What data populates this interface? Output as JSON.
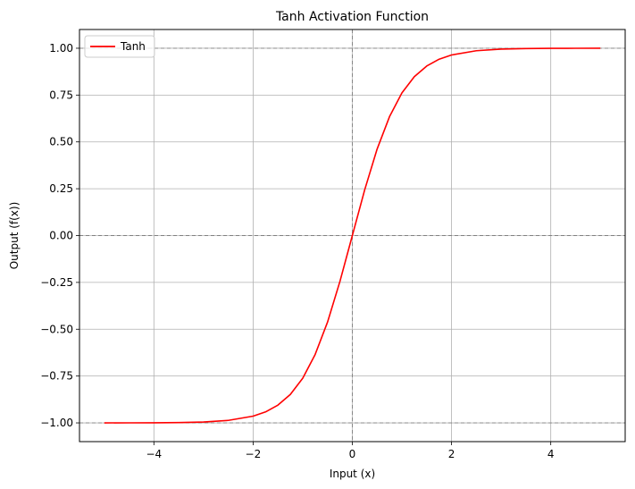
{
  "chart_data": {
    "type": "line",
    "title": "Tanh Activation Function",
    "xlabel": "Input (x)",
    "ylabel": "Output (f(x))",
    "xlim": [
      -5.5,
      5.5
    ],
    "ylim": [
      -1.1,
      1.1
    ],
    "xticks": [
      -4,
      -2,
      0,
      2,
      4
    ],
    "xtick_labels": [
      "−4",
      "−2",
      "0",
      "2",
      "4"
    ],
    "yticks": [
      -1.0,
      -0.75,
      -0.5,
      -0.25,
      0.0,
      0.25,
      0.5,
      0.75,
      1.0
    ],
    "ytick_labels": [
      "−1.00",
      "−0.75",
      "−0.50",
      "−0.25",
      "0.00",
      "0.25",
      "0.50",
      "0.75",
      "1.00"
    ],
    "grid": true,
    "legend_position": "top-left",
    "reference_lines": {
      "horizontal": [
        -1,
        0,
        1
      ],
      "vertical": [
        0
      ],
      "color": "#808080",
      "style": "dashed"
    },
    "series": [
      {
        "name": "Tanh",
        "color": "#ff0000",
        "x": [
          -5,
          -4.5,
          -4,
          -3.5,
          -3,
          -2.5,
          -2,
          -1.75,
          -1.5,
          -1.25,
          -1,
          -0.75,
          -0.5,
          -0.25,
          0,
          0.25,
          0.5,
          0.75,
          1,
          1.25,
          1.5,
          1.75,
          2,
          2.5,
          3,
          3.5,
          4,
          4.5,
          5
        ],
        "y": [
          -0.9999,
          -0.9998,
          -0.9993,
          -0.9982,
          -0.9951,
          -0.9866,
          -0.964,
          -0.9414,
          -0.9051,
          -0.8483,
          -0.7616,
          -0.6351,
          -0.4621,
          -0.2449,
          0.0,
          0.2449,
          0.4621,
          0.6351,
          0.7616,
          0.8483,
          0.9051,
          0.9414,
          0.964,
          0.9866,
          0.9951,
          0.9982,
          0.9993,
          0.9998,
          0.9999
        ]
      }
    ]
  }
}
